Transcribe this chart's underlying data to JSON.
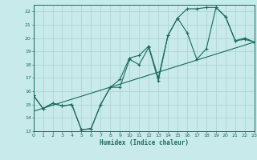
{
  "title": "",
  "xlabel": "Humidex (Indice chaleur)",
  "bg_color": "#c8eaea",
  "grid_color": "#b0d4d4",
  "line_color": "#1a6b5a",
  "xmin": 0,
  "xmax": 23,
  "ymin": 13,
  "ymax": 22.5,
  "x_ticks": [
    0,
    1,
    2,
    3,
    4,
    5,
    6,
    7,
    8,
    9,
    10,
    11,
    12,
    13,
    14,
    15,
    16,
    17,
    18,
    19,
    20,
    21,
    22,
    23
  ],
  "y_ticks": [
    13,
    14,
    15,
    16,
    17,
    18,
    19,
    20,
    21,
    22
  ],
  "line1_x": [
    0,
    1,
    2,
    3,
    4,
    5,
    6,
    7,
    8,
    9,
    10,
    11,
    12,
    13,
    14,
    15,
    16,
    17,
    18,
    19,
    20,
    21,
    22,
    23
  ],
  "line1_y": [
    15.7,
    14.7,
    15.1,
    14.9,
    15.0,
    13.1,
    13.2,
    15.0,
    16.3,
    16.9,
    18.5,
    18.7,
    19.4,
    17.0,
    20.2,
    21.5,
    22.2,
    22.2,
    22.3,
    22.3,
    21.6,
    19.8,
    20.0,
    19.7
  ],
  "line2_x": [
    0,
    1,
    2,
    3,
    4,
    5,
    6,
    7,
    8,
    9,
    10,
    11,
    12,
    13,
    14,
    15,
    16,
    17,
    18,
    19,
    20,
    21,
    22,
    23
  ],
  "line2_y": [
    15.7,
    14.7,
    15.1,
    14.9,
    15.0,
    13.1,
    13.2,
    15.0,
    16.3,
    16.3,
    18.4,
    18.0,
    19.3,
    16.8,
    20.2,
    21.5,
    20.4,
    18.4,
    19.2,
    22.3,
    21.6,
    19.8,
    19.9,
    19.7
  ],
  "line3_x": [
    0,
    23
  ],
  "line3_y": [
    14.5,
    19.7
  ]
}
